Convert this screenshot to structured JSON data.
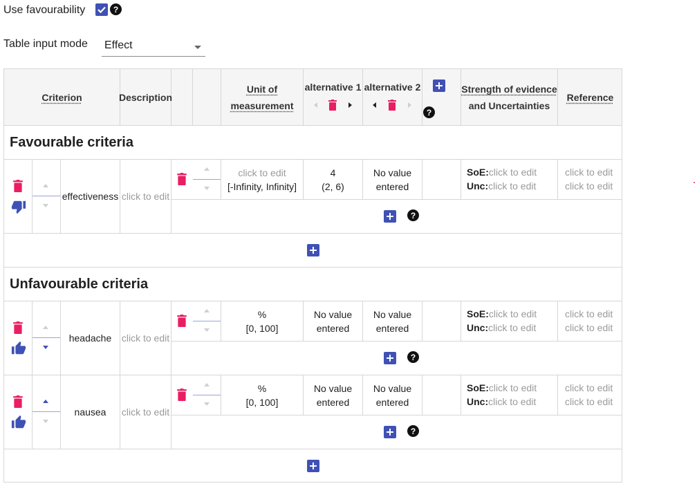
{
  "settings": {
    "use_favourability_label": "Use favourability",
    "use_favourability_checked": true,
    "table_input_mode_label": "Table input mode",
    "table_input_mode_value": "Effect"
  },
  "header": {
    "criterion": "Criterion",
    "description": "Description",
    "unit_line1": "Unit of",
    "unit_line2": "measurement",
    "alternatives": [
      "alternative 1",
      "alternative 2"
    ],
    "soe_line1": "Strength of evidence",
    "soe_line2": "and Uncertainties",
    "reference": "Reference"
  },
  "sections": {
    "favourable": {
      "title": "Favourable criteria",
      "criteria": [
        {
          "name": "effectiveness",
          "description": "click to edit",
          "unit_line1": "click to edit",
          "unit_line2": "[-Infinity, Infinity]",
          "alt1_line1": "4",
          "alt1_line2": "(2, 6)",
          "alt2_line1": "No value",
          "alt2_line2": "entered",
          "soe_prefix": "SoE:",
          "soe_value": "click to edit",
          "unc_prefix": "Unc:",
          "unc_value": "click to edit",
          "reference_line1": "click to edit",
          "reference_line2": "click to edit",
          "favourability_icon": "thumbs-down-icon"
        }
      ]
    },
    "unfavourable": {
      "title": "Unfavourable criteria",
      "criteria": [
        {
          "name": "headache",
          "description": "click to edit",
          "unit_line1": "%",
          "unit_line2": "[0, 100]",
          "alt1_line1": "No value",
          "alt1_line2": "entered",
          "alt2_line1": "No value",
          "alt2_line2": "entered",
          "soe_prefix": "SoE:",
          "soe_value": "click to edit",
          "unc_prefix": "Unc:",
          "unc_value": "click to edit",
          "reference_line1": "click to edit",
          "reference_line2": "click to edit",
          "favourability_icon": "thumbs-up-icon"
        },
        {
          "name": "nausea",
          "description": "click to edit",
          "unit_line1": "%",
          "unit_line2": "[0, 100]",
          "alt1_line1": "No value",
          "alt1_line2": "entered",
          "alt2_line1": "No value",
          "alt2_line2": "entered",
          "soe_prefix": "SoE:",
          "soe_value": "click to edit",
          "unc_prefix": "Unc:",
          "unc_value": "click to edit",
          "reference_line1": "click to edit",
          "reference_line2": "click to edit",
          "favourability_icon": "thumbs-up-icon"
        }
      ]
    }
  },
  "colors": {
    "accent": "#3f51b5",
    "delete": "#e91e63",
    "help": "#111111",
    "muted_text": "#9a9a9a"
  }
}
